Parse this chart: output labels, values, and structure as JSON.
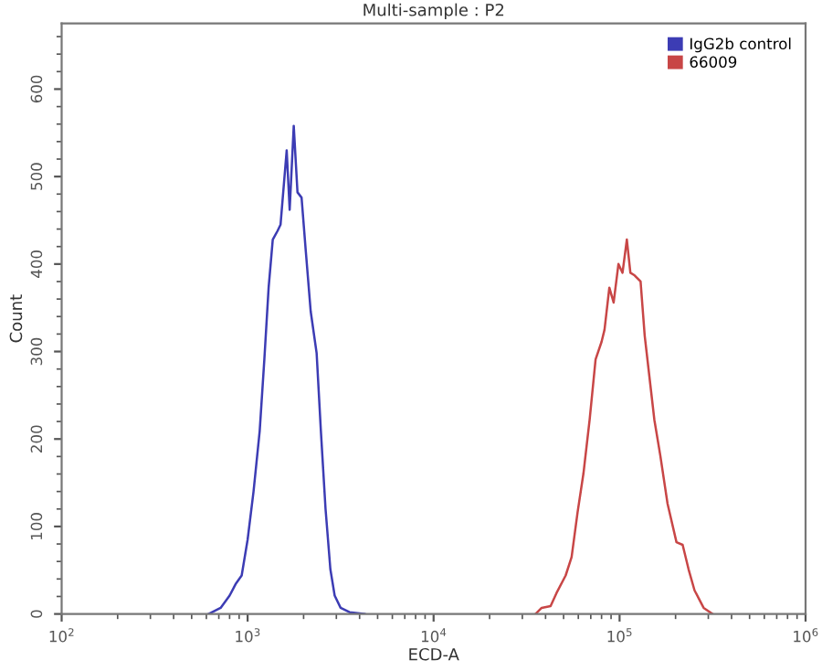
{
  "chart_data": {
    "type": "line",
    "title": "Multi-sample : P2",
    "xlabel": "ECD-A",
    "ylabel": "Count",
    "log": "x",
    "xlim": [
      100,
      1000000
    ],
    "ylim": [
      0,
      675
    ],
    "xticks": [
      {
        "value": 100,
        "label": "10$^{2}$"
      },
      {
        "value": 1000,
        "label": "10$^{3}$"
      },
      {
        "value": 10000,
        "label": "10$^{4}$"
      },
      {
        "value": 100000,
        "label": "10$^{5}$"
      },
      {
        "value": 1000000,
        "label": "10$^{6}$"
      }
    ],
    "yticks": [
      0,
      100,
      200,
      300,
      400,
      500,
      600
    ],
    "grid": false,
    "legend": "top right",
    "marker": "none",
    "line_style": "solid",
    "series": [
      {
        "name": "IgG2b control",
        "color": "#3c3cb4",
        "x": [
          617,
          716,
          800,
          861,
          929,
          1000,
          1076,
          1161,
          1230,
          1297,
          1365,
          1449,
          1503,
          1622,
          1683,
          1770,
          1854,
          1950,
          2056,
          2183,
          2350,
          2477,
          2624,
          2786,
          2938,
          3162,
          3532,
          4256
        ],
        "values": [
          0,
          7,
          21,
          34,
          44,
          85,
          140,
          209,
          291,
          373,
          428,
          438,
          445,
          530,
          462,
          558,
          482,
          476,
          414,
          346,
          298,
          209,
          120,
          51,
          21,
          7,
          2,
          0
        ]
      },
      {
        "name": "66009",
        "color": "#c84646",
        "x": [
          35320,
          38110,
          42560,
          45810,
          51290,
          55210,
          59430,
          63970,
          69020,
          74300,
          79980,
          82990,
          88100,
          92900,
          98600,
          103700,
          109400,
          114300,
          120500,
          129700,
          136500,
          144900,
          153800,
          165600,
          181100,
          202300,
          218300,
          235000,
          252900,
          283100,
          316200
        ],
        "values": [
          0,
          7,
          9,
          24,
          44,
          65,
          116,
          161,
          222,
          291,
          311,
          325,
          373,
          356,
          400,
          390,
          428,
          390,
          387,
          380,
          318,
          270,
          222,
          181,
          126,
          82,
          79,
          51,
          27,
          7,
          0
        ]
      }
    ]
  }
}
